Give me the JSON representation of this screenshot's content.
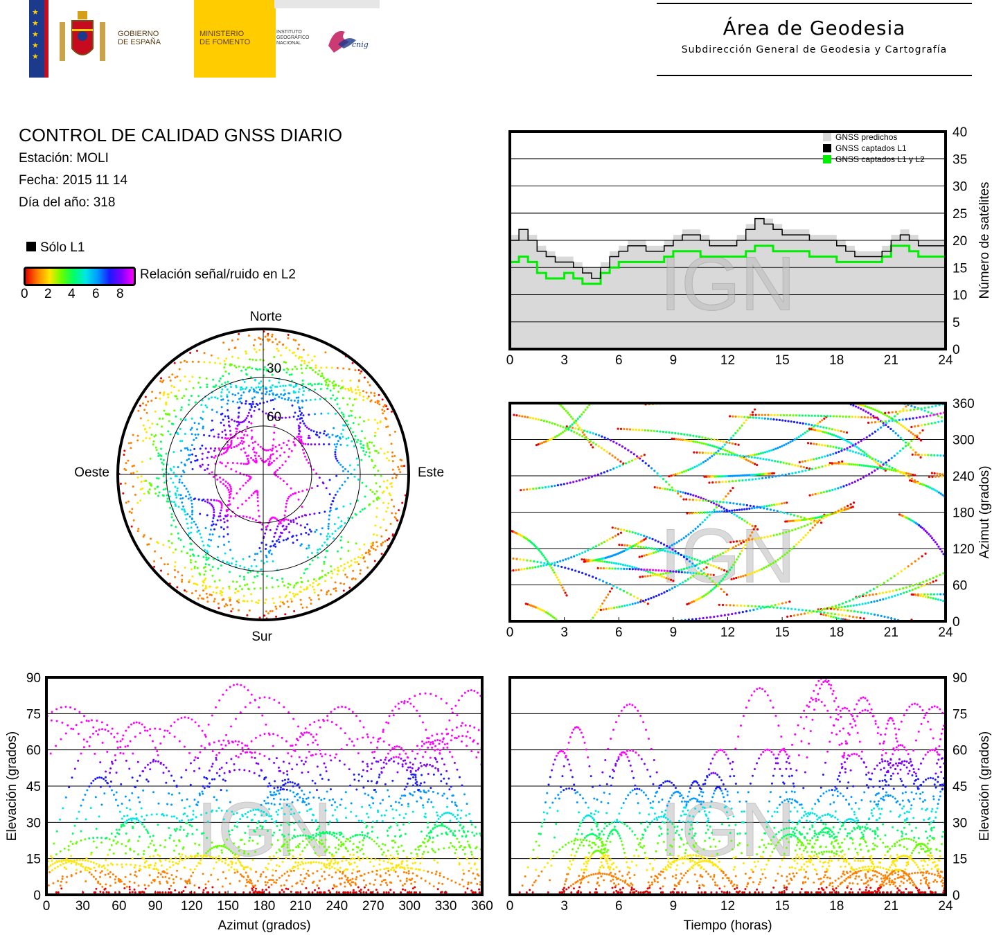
{
  "header": {
    "gobierno_label": "GOBIERNO\nDE ESPAÑA",
    "ministerio_label": "MINISTERIO\nDE FOMENTO",
    "instituto_label": "INSTITUTO\nGEOGRÁFICO\nNACIONAL",
    "cnig_label": "cnig",
    "area_title": "Área de Geodesia",
    "area_subtitle": "Subdirección General de Geodesia y Cartografía"
  },
  "report": {
    "title": "CONTROL DE CALIDAD GNSS DIARIO",
    "station": "Estación: MOLI",
    "date": "Fecha: 2015 11 14",
    "doy": "Día del año: 318"
  },
  "legend": {
    "l1_only_label": "Sólo L1",
    "snr_label": "Relación señal/ruido en L2",
    "snr_ticks": [
      "0",
      "2",
      "4",
      "6",
      "8"
    ],
    "colors": {
      "l1_only": "#000000",
      "snr_scale": [
        "#e60000",
        "#ff8000",
        "#ffe600",
        "#66ff00",
        "#00ff66",
        "#00e6e6",
        "#0099ff",
        "#1a1aff",
        "#8000ff",
        "#ff00ff"
      ]
    }
  },
  "watermark": "IGN",
  "chart_data": [
    {
      "id": "skyplot",
      "type": "scatter",
      "title": "",
      "directions": {
        "north": "Norte",
        "south": "Sur",
        "east": "Este",
        "west": "Oeste"
      },
      "elevation_rings": [
        "30",
        "60"
      ]
    },
    {
      "id": "satellites",
      "type": "area",
      "xlabel": "",
      "ylabel": "Número de satélites",
      "xlim": [
        0,
        24
      ],
      "ylim": [
        0,
        40
      ],
      "xticks": [
        "0",
        "3",
        "6",
        "9",
        "12",
        "15",
        "18",
        "21",
        "24"
      ],
      "yticks": [
        "0",
        "5",
        "10",
        "15",
        "20",
        "25",
        "30",
        "35",
        "40"
      ],
      "grid": true,
      "legend_position": "top-right",
      "series": [
        {
          "name": "GNSS predichos",
          "color": "#d9d9d9",
          "x": [
            0,
            0.5,
            1,
            1.5,
            2,
            2.5,
            3,
            3.5,
            4,
            4.5,
            5,
            5.5,
            6,
            6.5,
            7,
            7.5,
            8,
            8.5,
            9,
            9.5,
            10,
            10.5,
            11,
            11.5,
            12,
            12.5,
            13,
            13.5,
            14,
            14.5,
            15,
            15.5,
            16,
            16.5,
            17,
            17.5,
            18,
            18.5,
            19,
            19.5,
            20,
            20.5,
            21,
            21.5,
            22,
            22.5,
            23,
            23.5,
            24
          ],
          "values": [
            21,
            22,
            21,
            19,
            18,
            17,
            17,
            16,
            15,
            15,
            16,
            18,
            19,
            20,
            20,
            19,
            19,
            20,
            21,
            22,
            22,
            21,
            20,
            20,
            20,
            21,
            23,
            24,
            24,
            23,
            22,
            22,
            22,
            21,
            21,
            21,
            20,
            19,
            18,
            18,
            18,
            19,
            21,
            22,
            21,
            20,
            20,
            20,
            20
          ]
        },
        {
          "name": "GNSS captados L1",
          "color": "#000000",
          "x": [
            0,
            0.5,
            1,
            1.5,
            2,
            2.5,
            3,
            3.5,
            4,
            4.5,
            5,
            5.5,
            6,
            6.5,
            7,
            7.5,
            8,
            8.5,
            9,
            9.5,
            10,
            10.5,
            11,
            11.5,
            12,
            12.5,
            13,
            13.5,
            14,
            14.5,
            15,
            15.5,
            16,
            16.5,
            17,
            17.5,
            18,
            18.5,
            19,
            19.5,
            20,
            20.5,
            21,
            21.5,
            22,
            22.5,
            23,
            23.5,
            24
          ],
          "values": [
            20,
            22,
            20,
            18,
            17,
            16,
            16,
            15,
            14,
            13,
            15,
            17,
            18,
            19,
            19,
            18,
            18,
            19,
            20,
            21,
            21,
            20,
            19,
            19,
            19,
            20,
            22,
            24,
            23,
            22,
            21,
            21,
            21,
            20,
            20,
            20,
            19,
            18,
            17,
            17,
            17,
            18,
            20,
            21,
            20,
            19,
            19,
            19,
            19
          ]
        },
        {
          "name": "GNSS captados L1 y L2",
          "color": "#00ee00",
          "x": [
            0,
            0.5,
            1,
            1.5,
            2,
            2.5,
            3,
            3.5,
            4,
            4.5,
            5,
            5.5,
            6,
            6.5,
            7,
            7.5,
            8,
            8.5,
            9,
            9.5,
            10,
            10.5,
            11,
            11.5,
            12,
            12.5,
            13,
            13.5,
            14,
            14.5,
            15,
            15.5,
            16,
            16.5,
            17,
            17.5,
            18,
            18.5,
            19,
            19.5,
            20,
            20.5,
            21,
            21.5,
            22,
            22.5,
            23,
            23.5,
            24
          ],
          "values": [
            16,
            17,
            16,
            14,
            13,
            13,
            14,
            13,
            12,
            12,
            14,
            15,
            16,
            16,
            16,
            16,
            16,
            17,
            18,
            18,
            18,
            17,
            17,
            17,
            17,
            17,
            18,
            19,
            19,
            18,
            18,
            18,
            18,
            17,
            17,
            17,
            16,
            16,
            16,
            16,
            16,
            17,
            19,
            19,
            18,
            17,
            17,
            17,
            17
          ]
        }
      ]
    },
    {
      "id": "azimuth_vs_time",
      "type": "scatter",
      "xlabel": "",
      "ylabel": "Azimut (grados)",
      "xlim": [
        0,
        24
      ],
      "ylim": [
        0,
        360
      ],
      "xticks": [
        "0",
        "3",
        "6",
        "9",
        "12",
        "15",
        "18",
        "21",
        "24"
      ],
      "yticks": [
        "0",
        "60",
        "120",
        "180",
        "240",
        "300",
        "360"
      ],
      "grid": true
    },
    {
      "id": "elevation_vs_azimuth",
      "type": "scatter",
      "xlabel": "Azimut (grados)",
      "ylabel": "Elevación (grados)",
      "xlim": [
        0,
        360
      ],
      "ylim": [
        0,
        90
      ],
      "xticks": [
        "0",
        "30",
        "60",
        "90",
        "120",
        "150",
        "180",
        "210",
        "240",
        "270",
        "300",
        "330",
        "360"
      ],
      "yticks": [
        "0",
        "15",
        "30",
        "45",
        "60",
        "75",
        "90"
      ],
      "grid": true
    },
    {
      "id": "elevation_vs_time",
      "type": "scatter",
      "xlabel": "Tiempo (horas)",
      "ylabel": "Elevación (grados)",
      "xlim": [
        0,
        24
      ],
      "ylim": [
        0,
        90
      ],
      "xticks": [
        "0",
        "3",
        "6",
        "9",
        "12",
        "15",
        "18",
        "21",
        "24"
      ],
      "yticks": [
        "0",
        "15",
        "30",
        "45",
        "60",
        "75",
        "90"
      ],
      "grid": true
    }
  ]
}
